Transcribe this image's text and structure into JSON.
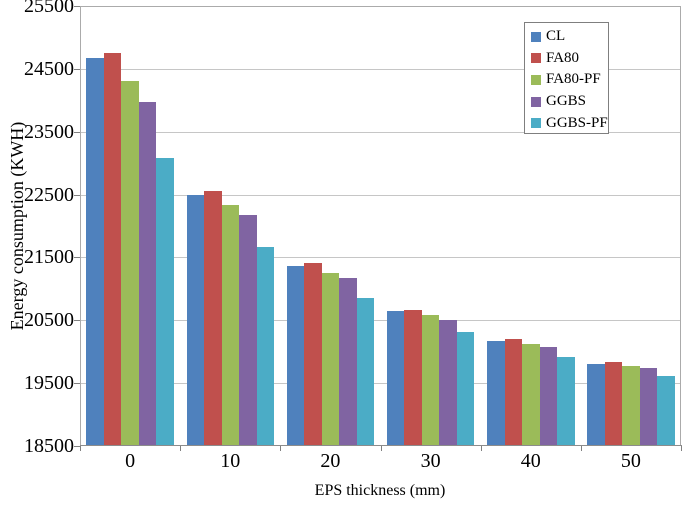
{
  "chart_data": {
    "type": "bar",
    "title": "",
    "xlabel": "EPS thickness (mm)",
    "ylabel": "Energy consumption (KWH)",
    "categories": [
      "0",
      "10",
      "20",
      "30",
      "40",
      "50"
    ],
    "ylim": [
      18500,
      25500
    ],
    "ytick_interval": 1000,
    "yticks": [
      18500,
      19500,
      20500,
      21500,
      22500,
      23500,
      24500,
      25500
    ],
    "grid": true,
    "legend_position": "top-right-inside",
    "series": [
      {
        "name": "CL",
        "color": "#4F81BD",
        "values": [
          24670,
          22500,
          21370,
          20650,
          20170,
          19800
        ]
      },
      {
        "name": "FA80",
        "color": "#C0504D",
        "values": [
          24750,
          22560,
          21410,
          20660,
          20200,
          19830
        ]
      },
      {
        "name": "FA80-PF",
        "color": "#9BBB59",
        "values": [
          24310,
          22340,
          21260,
          20590,
          20130,
          19780
        ]
      },
      {
        "name": "GGBS",
        "color": "#8064A2",
        "values": [
          23980,
          22180,
          21170,
          20510,
          20080,
          19740
        ]
      },
      {
        "name": "GGBS-PF",
        "color": "#4BACC6",
        "values": [
          23080,
          21670,
          20860,
          20320,
          19910,
          19620
        ]
      }
    ]
  },
  "style_colors": {
    "gridline": "#c6c6c6",
    "plot_border": "#ababab",
    "axis_line": "#8c8c8c",
    "legend_border": "#7f7f7f"
  }
}
